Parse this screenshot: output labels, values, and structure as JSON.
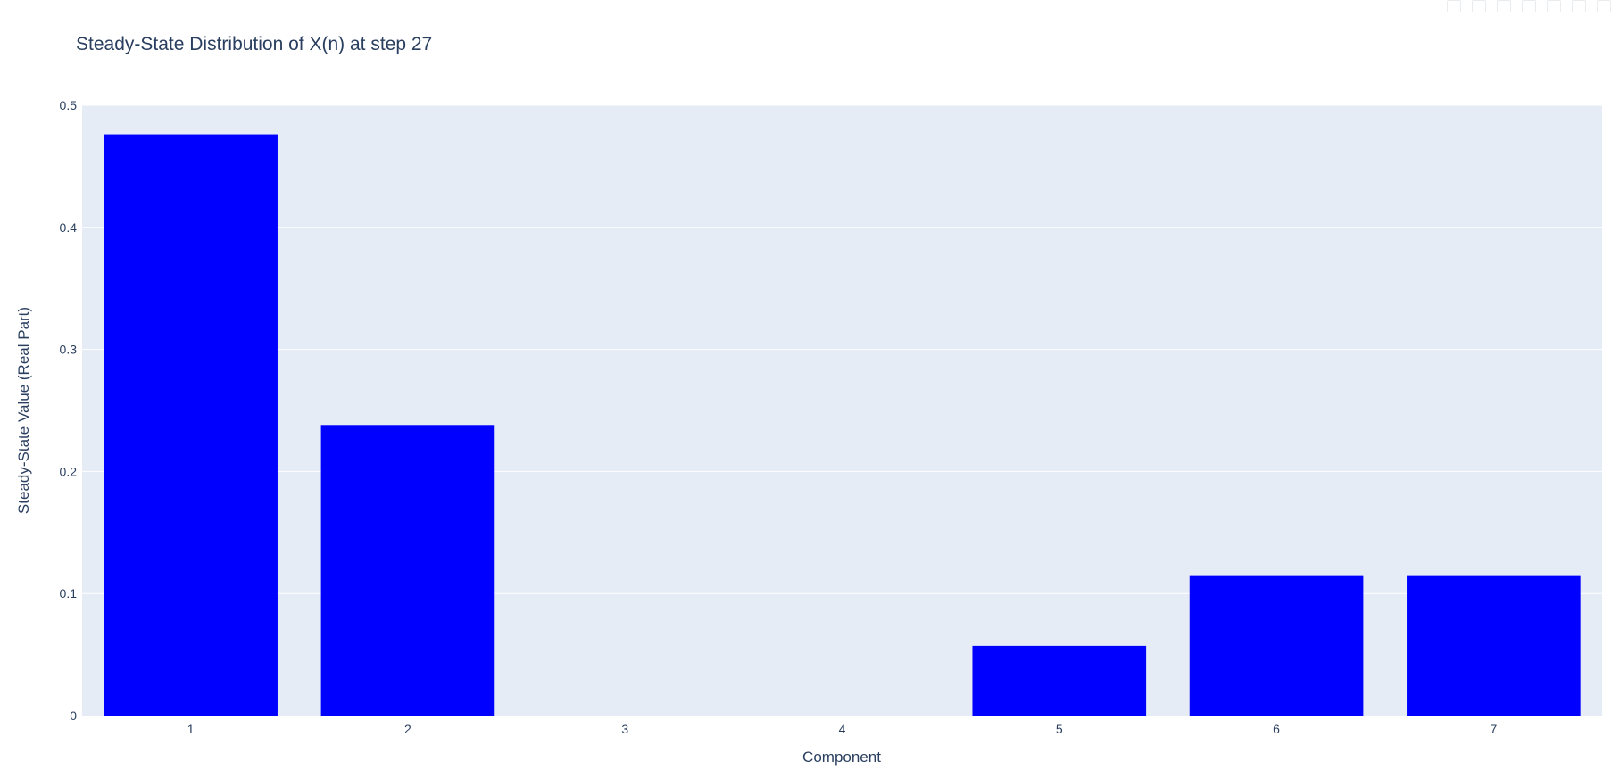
{
  "chart_data": {
    "type": "bar",
    "title": "Steady-State Distribution of X(n) at step 27",
    "xlabel": "Component",
    "ylabel": "Steady-State Value (Real Part)",
    "categories": [
      "1",
      "2",
      "3",
      "4",
      "5",
      "6",
      "7"
    ],
    "values": [
      0.4762,
      0.2381,
      0.0,
      0.0,
      0.0571,
      0.1143,
      0.1143
    ],
    "ylim": [
      0,
      0.5
    ],
    "yticks": [
      0,
      0.1,
      0.2,
      0.3,
      0.4,
      0.5
    ],
    "ytick_labels": [
      "0",
      "0.1",
      "0.2",
      "0.3",
      "0.4",
      "0.5"
    ],
    "bar_color": "#0000ff",
    "plot_bgcolor": "#e5ecf6",
    "grid": true,
    "legend": "none"
  }
}
